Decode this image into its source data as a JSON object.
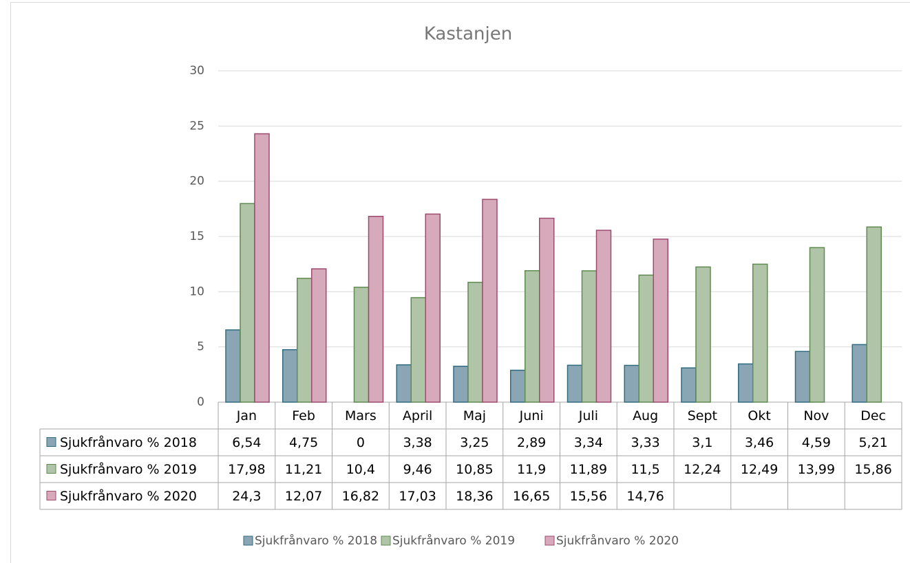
{
  "chart_data": {
    "type": "bar",
    "title": "Kastanjen",
    "categories": [
      "Jan",
      "Feb",
      "Mars",
      "April",
      "Maj",
      "Juni",
      "Juli",
      "Aug",
      "Sept",
      "Okt",
      "Nov",
      "Dec"
    ],
    "series": [
      {
        "name": "Sjukfrånvaro % 2018",
        "color": "#8aa6b5",
        "edge_color": "#2f6b80",
        "values": [
          6.54,
          4.75,
          0,
          3.38,
          3.25,
          2.89,
          3.34,
          3.33,
          3.1,
          3.46,
          4.59,
          5.21
        ],
        "value_labels": [
          "6,54",
          "4,75",
          "0",
          "3,38",
          "3,25",
          "2,89",
          "3,34",
          "3,33",
          "3,1",
          "3,46",
          "4,59",
          "5,21"
        ]
      },
      {
        "name": "Sjukfrånvaro % 2019",
        "color": "#b0c4a8",
        "edge_color": "#5e8a4f",
        "values": [
          17.98,
          11.21,
          10.4,
          9.46,
          10.85,
          11.9,
          11.89,
          11.5,
          12.24,
          12.49,
          13.99,
          15.86
        ],
        "value_labels": [
          "17,98",
          "11,21",
          "10,4",
          "9,46",
          "10,85",
          "11,9",
          "11,89",
          "11,5",
          "12,24",
          "12,49",
          "13,99",
          "15,86"
        ]
      },
      {
        "name": "Sjukfrånvaro % 2020",
        "color": "#d6aabb",
        "edge_color": "#9e4a6f",
        "values": [
          24.3,
          12.07,
          16.82,
          17.03,
          18.36,
          16.65,
          15.56,
          14.76,
          null,
          null,
          null,
          null
        ],
        "value_labels": [
          "24,3",
          "12,07",
          "16,82",
          "17,03",
          "18,36",
          "16,65",
          "15,56",
          "14,76",
          null,
          null,
          null,
          null
        ]
      }
    ],
    "ylim": [
      0,
      30
    ],
    "yticks": [
      0,
      5,
      10,
      15,
      20,
      25,
      30
    ],
    "grid": true,
    "legend": "bottom"
  }
}
